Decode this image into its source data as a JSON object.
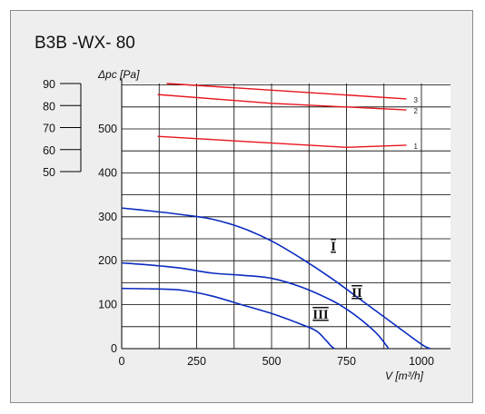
{
  "title": "B3B -WX- 80",
  "chart_data": {
    "type": "line",
    "title": "B3B -WX- 80",
    "xlabel": "V [m³/h]",
    "ylabel": "Δpc [Pa]",
    "xlim": [
      0,
      1100
    ],
    "ylim": [
      0,
      600
    ],
    "grid": true,
    "x_ticks": [
      "0",
      "250",
      "500",
      "750",
      "1000"
    ],
    "y_ticks": [
      "0",
      "100",
      "200",
      "300",
      "400",
      "500"
    ],
    "fan_curves": [
      {
        "name": "I",
        "color": "#0b2bbf",
        "x": [
          0,
          100,
          200,
          300,
          400,
          500,
          600,
          700,
          800,
          900,
          1000,
          1030
        ],
        "y": [
          320,
          313,
          305,
          295,
          275,
          245,
          205,
          160,
          110,
          60,
          10,
          0
        ]
      },
      {
        "name": "II",
        "color": "#0b2bbf",
        "x": [
          0,
          100,
          200,
          300,
          400,
          500,
          600,
          700,
          750,
          800,
          850,
          880,
          890
        ],
        "y": [
          195,
          190,
          183,
          172,
          167,
          160,
          140,
          110,
          90,
          65,
          35,
          10,
          0
        ]
      },
      {
        "name": "III",
        "color": "#0b2bbf",
        "x": [
          0,
          100,
          200,
          300,
          400,
          500,
          600,
          650,
          680,
          700,
          710
        ],
        "y": [
          137,
          136,
          133,
          120,
          100,
          80,
          55,
          40,
          20,
          5,
          0
        ]
      }
    ],
    "noise_scale": {
      "ticks": [
        "90",
        "80",
        "70",
        "60",
        "50"
      ],
      "values": [
        90,
        80,
        70,
        60,
        50
      ]
    },
    "noise_curves": [
      {
        "name": "1",
        "color": "#e8141c",
        "x": [
          120,
          750,
          950
        ],
        "y": [
          66,
          61,
          62
        ]
      },
      {
        "name": "2",
        "color": "#e8141c",
        "x": [
          120,
          500,
          950
        ],
        "y": [
          85,
          81,
          78
        ]
      },
      {
        "name": "3",
        "color": "#e8141c",
        "x": [
          150,
          500,
          950
        ],
        "y": [
          90,
          87,
          83
        ]
      }
    ]
  }
}
